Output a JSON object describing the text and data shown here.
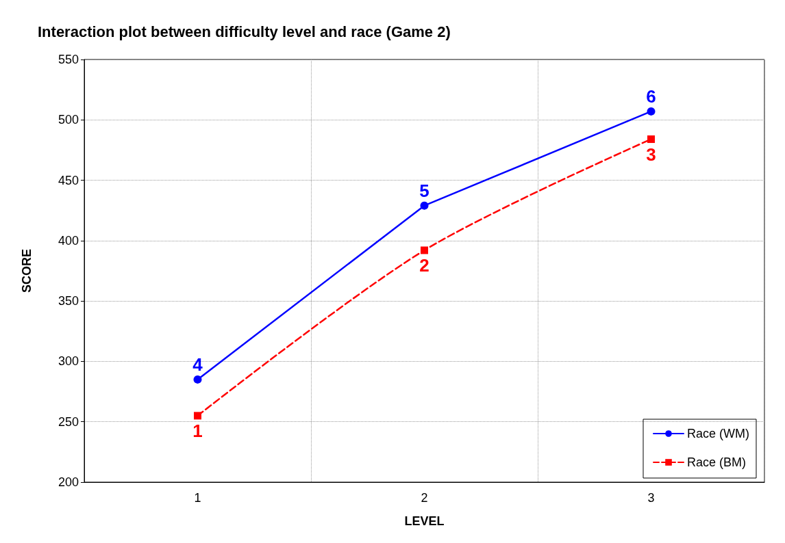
{
  "chart_data": {
    "type": "line",
    "title": "Interaction plot between difficulty level and race (Game 2)",
    "xlabel": "LEVEL",
    "ylabel": "SCORE",
    "categories": [
      "1",
      "2",
      "3"
    ],
    "series": [
      {
        "name": "Race (WM)",
        "color": "#0000ff",
        "values": [
          285,
          429,
          507
        ],
        "marker": "circle",
        "line_style": "solid"
      },
      {
        "name": "Race (BM)",
        "color": "#ff0000",
        "values": [
          255,
          392,
          484
        ],
        "marker": "square",
        "line_style": "dashed"
      }
    ],
    "ylim": [
      200,
      550
    ],
    "yticks": [
      200,
      250,
      300,
      350,
      400,
      450,
      500,
      550
    ],
    "grid": true,
    "legend": "bottom right",
    "annotations": [
      {
        "text": "1",
        "x": "1",
        "y": 255
      },
      {
        "text": "2",
        "x": "2",
        "y": 392
      },
      {
        "text": "3",
        "x": "3",
        "y": 484
      },
      {
        "text": "4",
        "x": "1",
        "y": 285
      },
      {
        "text": "5",
        "x": "2",
        "y": 429
      },
      {
        "text": "6",
        "x": "3",
        "y": 507
      }
    ]
  }
}
